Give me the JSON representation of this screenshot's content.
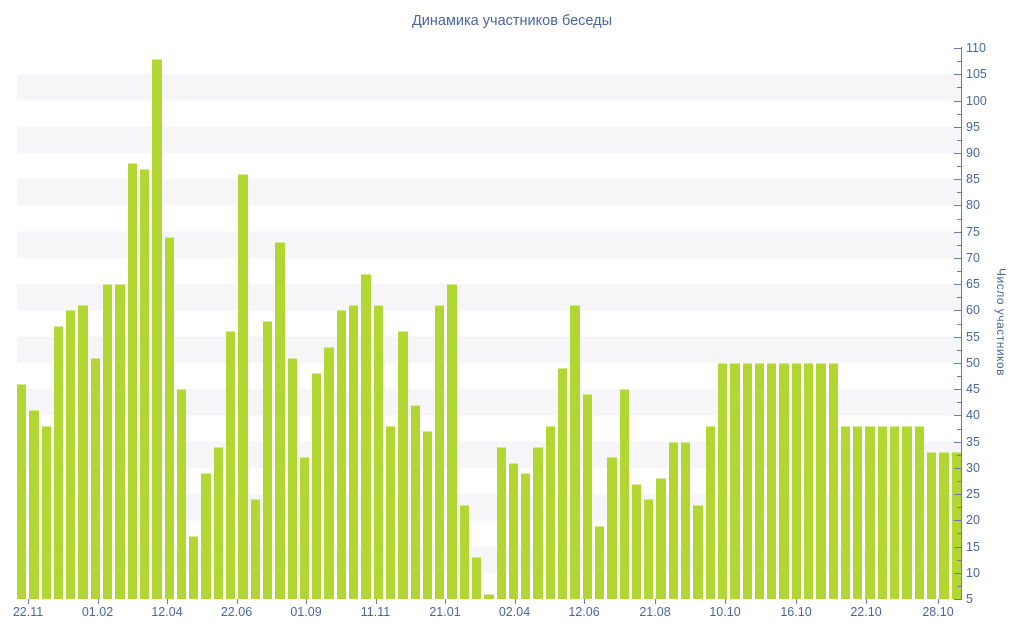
{
  "chart_data": {
    "type": "bar",
    "title": "Динамика участников беседы",
    "ylabel": "Число участников",
    "xlabel": "",
    "legend": "none",
    "grid": "alternating horizontal bands every 5 units",
    "bar_color": "#b2d733",
    "text_color": "#4a66a0",
    "axis_color": "#6080b2",
    "stripe_color": "#f6f6f8",
    "ylim": [
      5,
      110
    ],
    "y_tick_step": 5,
    "y_minor_tick_step": 2.5,
    "x_labels": [
      "22.11",
      "01.02",
      "12.04",
      "22.06",
      "01.09",
      "11.11",
      "21.01",
      "02.04",
      "12.06",
      "21.08",
      "10.10",
      "16.10",
      "22.10",
      "28.10"
    ],
    "values": [
      46,
      41,
      38,
      57,
      60,
      61,
      51,
      65,
      65,
      88,
      87,
      108,
      74,
      45,
      17,
      29,
      34,
      56,
      86,
      24,
      58,
      73,
      51,
      32,
      48,
      53,
      60,
      61,
      67,
      61,
      38,
      56,
      42,
      37,
      61,
      65,
      23,
      13,
      6,
      34,
      31,
      29,
      34,
      38,
      49,
      61,
      44,
      19,
      32,
      45,
      27,
      24,
      28,
      35,
      35,
      23,
      38,
      50,
      50,
      50,
      50,
      50,
      50,
      50,
      50,
      50,
      50,
      38,
      38,
      38,
      38,
      38,
      38,
      38,
      33,
      33,
      33
    ]
  }
}
